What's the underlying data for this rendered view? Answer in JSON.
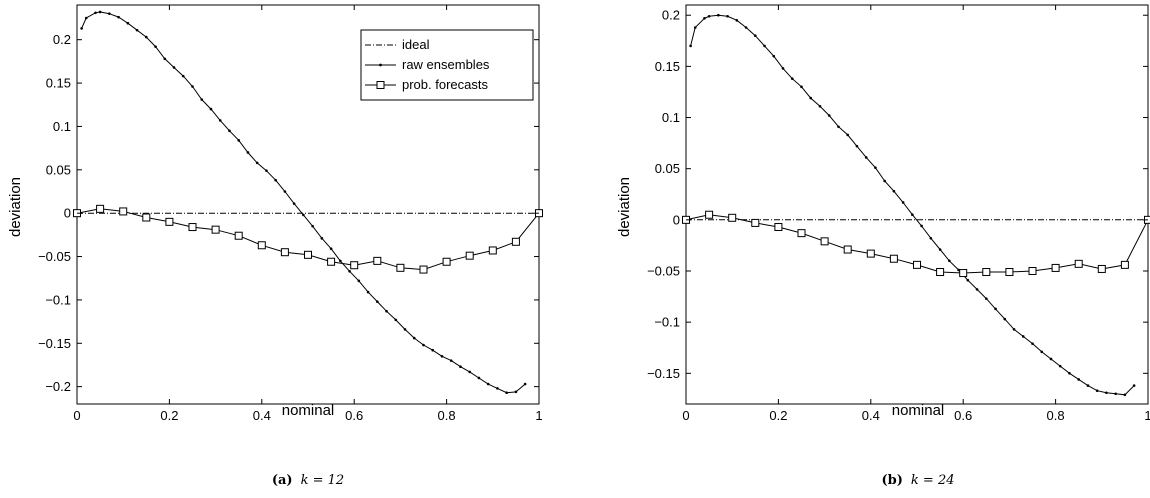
{
  "chart_data": [
    {
      "type": "line",
      "xlabel": "nominal",
      "ylabel": "deviation",
      "xlim": [
        0,
        1
      ],
      "ylim": [
        -0.22,
        0.24
      ],
      "xticks": [
        "0",
        "0.2",
        "0.4",
        "0.6",
        "0.8",
        "1"
      ],
      "yticks": [
        "−0.2",
        "−0.15",
        "−0.1",
        "−0.05",
        "0",
        "0.05",
        "0.1",
        "0.15",
        "0.2"
      ],
      "legend": {
        "position": "top-right",
        "entries": [
          "ideal",
          "raw ensembles",
          "prob. forecasts"
        ]
      },
      "caption": {
        "tag": "(a)",
        "text": "k = 12"
      },
      "series": [
        {
          "name": "ideal",
          "style": "dash-dot",
          "x": [
            0,
            1
          ],
          "y": [
            0,
            0
          ]
        },
        {
          "name": "raw ensembles",
          "style": "line-dots",
          "x": [
            0.01,
            0.02,
            0.04,
            0.05,
            0.07,
            0.09,
            0.11,
            0.13,
            0.15,
            0.17,
            0.19,
            0.21,
            0.23,
            0.25,
            0.27,
            0.29,
            0.31,
            0.33,
            0.35,
            0.37,
            0.39,
            0.41,
            0.43,
            0.45,
            0.47,
            0.49,
            0.51,
            0.53,
            0.55,
            0.57,
            0.59,
            0.61,
            0.63,
            0.65,
            0.67,
            0.69,
            0.71,
            0.73,
            0.75,
            0.77,
            0.79,
            0.81,
            0.83,
            0.85,
            0.87,
            0.89,
            0.91,
            0.93,
            0.95,
            0.97
          ],
          "y": [
            0.213,
            0.225,
            0.231,
            0.232,
            0.23,
            0.226,
            0.219,
            0.211,
            0.203,
            0.192,
            0.178,
            0.168,
            0.158,
            0.146,
            0.131,
            0.12,
            0.107,
            0.095,
            0.084,
            0.07,
            0.058,
            0.049,
            0.038,
            0.025,
            0.011,
            -0.002,
            -0.015,
            -0.029,
            -0.041,
            -0.055,
            -0.067,
            -0.078,
            -0.091,
            -0.102,
            -0.113,
            -0.123,
            -0.134,
            -0.144,
            -0.152,
            -0.158,
            -0.165,
            -0.17,
            -0.177,
            -0.183,
            -0.19,
            -0.197,
            -0.202,
            -0.207,
            -0.206,
            -0.197
          ]
        },
        {
          "name": "prob. forecasts",
          "style": "line-squares",
          "x": [
            0,
            0.05,
            0.1,
            0.15,
            0.2,
            0.25,
            0.3,
            0.35,
            0.4,
            0.45,
            0.5,
            0.55,
            0.6,
            0.65,
            0.7,
            0.75,
            0.8,
            0.85,
            0.9,
            0.95,
            1
          ],
          "y": [
            0,
            0.005,
            0.002,
            -0.005,
            -0.01,
            -0.016,
            -0.019,
            -0.026,
            -0.037,
            -0.045,
            -0.048,
            -0.056,
            -0.06,
            -0.055,
            -0.063,
            -0.065,
            -0.056,
            -0.049,
            -0.043,
            -0.033,
            0
          ]
        }
      ]
    },
    {
      "type": "line",
      "xlabel": "nominal",
      "ylabel": "deviation",
      "xlim": [
        0,
        1
      ],
      "ylim": [
        -0.18,
        0.21
      ],
      "xticks": [
        "0",
        "0.2",
        "0.4",
        "0.6",
        "0.8",
        "1"
      ],
      "yticks": [
        "−0.15",
        "−0.1",
        "−0.05",
        "0",
        "0.05",
        "0.1",
        "0.15",
        "0.2"
      ],
      "caption": {
        "tag": "(b)",
        "text": "k = 24"
      },
      "series": [
        {
          "name": "ideal",
          "style": "dash-dot",
          "x": [
            0,
            1
          ],
          "y": [
            0,
            0
          ]
        },
        {
          "name": "raw ensembles",
          "style": "line-dots",
          "x": [
            0.01,
            0.02,
            0.04,
            0.05,
            0.07,
            0.09,
            0.11,
            0.13,
            0.15,
            0.17,
            0.19,
            0.21,
            0.23,
            0.25,
            0.27,
            0.29,
            0.31,
            0.33,
            0.35,
            0.37,
            0.39,
            0.41,
            0.43,
            0.45,
            0.47,
            0.49,
            0.51,
            0.53,
            0.55,
            0.57,
            0.59,
            0.61,
            0.63,
            0.65,
            0.67,
            0.69,
            0.71,
            0.73,
            0.75,
            0.77,
            0.79,
            0.81,
            0.83,
            0.85,
            0.87,
            0.89,
            0.91,
            0.93,
            0.95,
            0.97
          ],
          "y": [
            0.17,
            0.188,
            0.197,
            0.199,
            0.2,
            0.199,
            0.195,
            0.188,
            0.18,
            0.17,
            0.16,
            0.148,
            0.138,
            0.13,
            0.119,
            0.111,
            0.102,
            0.091,
            0.083,
            0.072,
            0.061,
            0.051,
            0.038,
            0.028,
            0.017,
            0.005,
            -0.006,
            -0.018,
            -0.029,
            -0.04,
            -0.049,
            -0.059,
            -0.068,
            -0.077,
            -0.087,
            -0.097,
            -0.107,
            -0.114,
            -0.121,
            -0.129,
            -0.136,
            -0.143,
            -0.15,
            -0.156,
            -0.162,
            -0.167,
            -0.169,
            -0.17,
            -0.171,
            -0.162
          ]
        },
        {
          "name": "prob. forecasts",
          "style": "line-squares",
          "x": [
            0,
            0.05,
            0.1,
            0.15,
            0.2,
            0.25,
            0.3,
            0.35,
            0.4,
            0.45,
            0.5,
            0.55,
            0.6,
            0.65,
            0.7,
            0.75,
            0.8,
            0.85,
            0.9,
            0.95,
            1
          ],
          "y": [
            0,
            0.005,
            0.002,
            -0.003,
            -0.007,
            -0.013,
            -0.021,
            -0.029,
            -0.033,
            -0.038,
            -0.044,
            -0.051,
            -0.052,
            -0.051,
            -0.051,
            -0.05,
            -0.047,
            -0.043,
            -0.048,
            -0.044,
            0
          ]
        }
      ]
    }
  ]
}
